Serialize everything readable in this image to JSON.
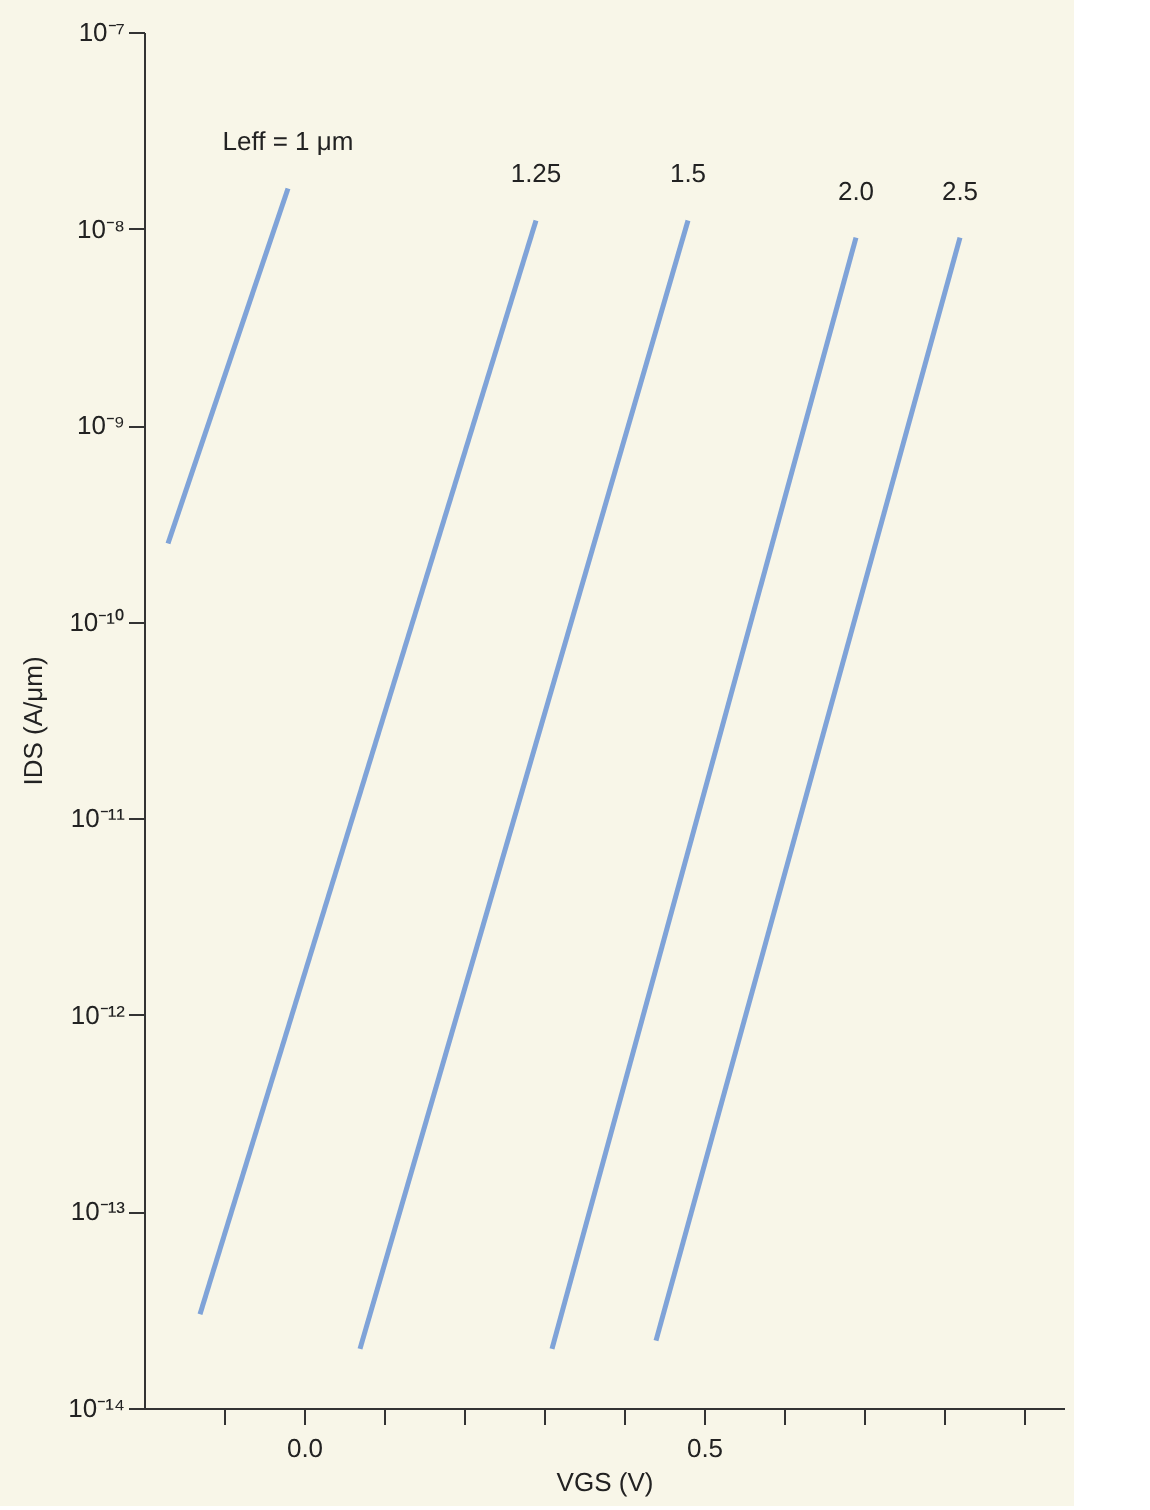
{
  "chart_data": {
    "type": "line",
    "xlabel": "VGS (V)",
    "ylabel": "IDS (A/μm)",
    "log": "y",
    "grid": false,
    "legend": false,
    "marker": "none",
    "line_style": "solid",
    "xlim": [
      -0.2,
      0.95
    ],
    "xticks": [
      {
        "value": -0.1,
        "label": null
      },
      {
        "value": 0.0,
        "label": "0.0"
      },
      {
        "value": 0.1,
        "label": null
      },
      {
        "value": 0.2,
        "label": null
      },
      {
        "value": 0.3,
        "label": null
      },
      {
        "value": 0.4,
        "label": null
      },
      {
        "value": 0.5,
        "label": "0.5"
      },
      {
        "value": 0.6,
        "label": null
      },
      {
        "value": 0.7,
        "label": null
      },
      {
        "value": 0.8,
        "label": null
      },
      {
        "value": 0.9,
        "label": null
      }
    ],
    "ylim": [
      1e-14,
      1e-07
    ],
    "yticks": [
      {
        "value": 1e-14,
        "label": "10⁻¹⁴"
      },
      {
        "value": 1e-13,
        "label": "10⁻¹³"
      },
      {
        "value": 1e-12,
        "label": "10⁻¹²"
      },
      {
        "value": 1e-11,
        "label": "10⁻¹¹"
      },
      {
        "value": 1e-10,
        "label": "10⁻¹⁰"
      },
      {
        "value": 1e-09,
        "label": "10⁻⁹"
      },
      {
        "value": 1e-08,
        "label": "10⁻⁸"
      },
      {
        "value": 1e-07,
        "label": "10⁻⁷"
      }
    ],
    "series": [
      {
        "name": "Leff = 1 μm",
        "color": "#7fa3d8",
        "x": [
          -0.17,
          -0.02
        ],
        "values": [
          2.5e-10,
          1.6e-08
        ]
      },
      {
        "name": "1.25",
        "color": "#7fa3d8",
        "x": [
          -0.13,
          0.29
        ],
        "values": [
          3e-14,
          1.1e-08
        ]
      },
      {
        "name": "1.5",
        "color": "#7fa3d8",
        "x": [
          0.07,
          0.48
        ],
        "values": [
          2e-14,
          1.1e-08
        ]
      },
      {
        "name": "2.0",
        "color": "#7fa3d8",
        "x": [
          0.31,
          0.69
        ],
        "values": [
          2e-14,
          9e-09
        ]
      },
      {
        "name": "2.5",
        "color": "#7fa3d8",
        "x": [
          0.44,
          0.82
        ],
        "values": [
          2.2e-14,
          9e-09
        ]
      }
    ]
  }
}
